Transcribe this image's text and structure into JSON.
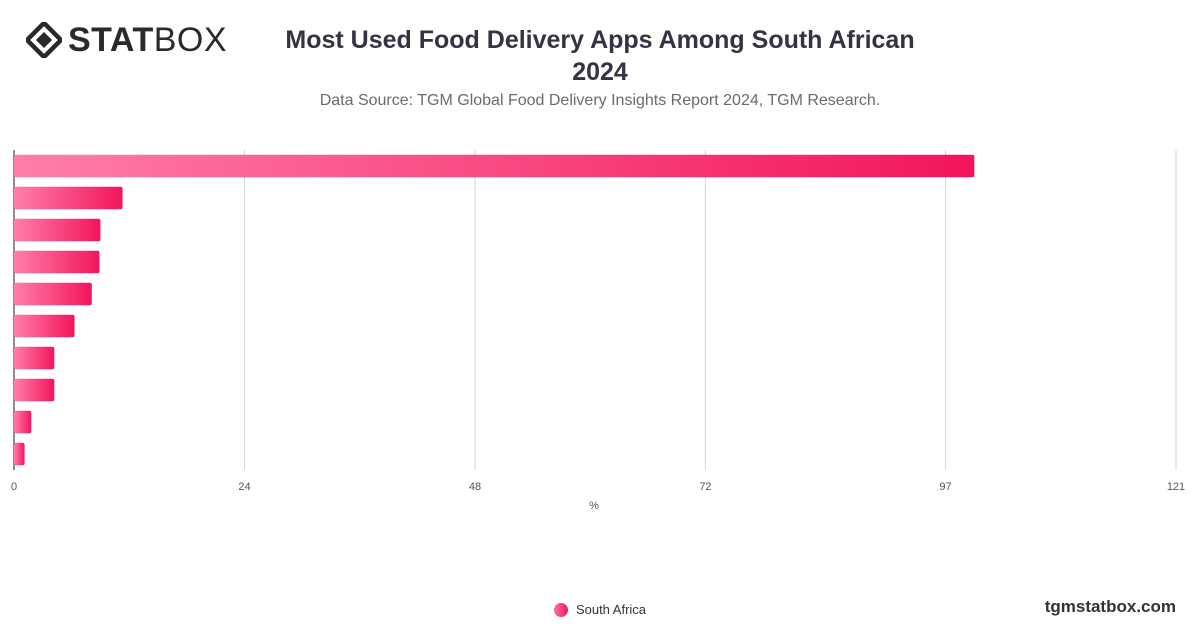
{
  "brand": {
    "logo_stat": "STAT",
    "logo_box": "BOX",
    "watermark": "tgmstatbox.com"
  },
  "header": {
    "title_line1": "Most Used Food Delivery Apps Among South African",
    "title_line2": "2024",
    "subtitle": "Data Source: TGM Global Food Delivery Insights Report 2024, TGM Research."
  },
  "chart_data": {
    "type": "bar",
    "orientation": "horizontal",
    "categories": [
      "",
      "",
      "",
      "",
      "",
      "",
      "",
      "",
      "",
      ""
    ],
    "series": [
      {
        "name": "South Africa",
        "values": [
          100,
          11.3,
          9,
          8.9,
          8.1,
          6.3,
          4.2,
          4.2,
          1.8,
          1.1
        ],
        "color_start": "#ff7eaa",
        "color_end": "#f2155c"
      }
    ],
    "xlim": [
      0,
      121
    ],
    "xticks": [
      0,
      24,
      48,
      72,
      97,
      121
    ],
    "xlabel": "%",
    "grid": true,
    "legend_position": "bottom-center"
  },
  "legend": {
    "label": "South Africa"
  }
}
